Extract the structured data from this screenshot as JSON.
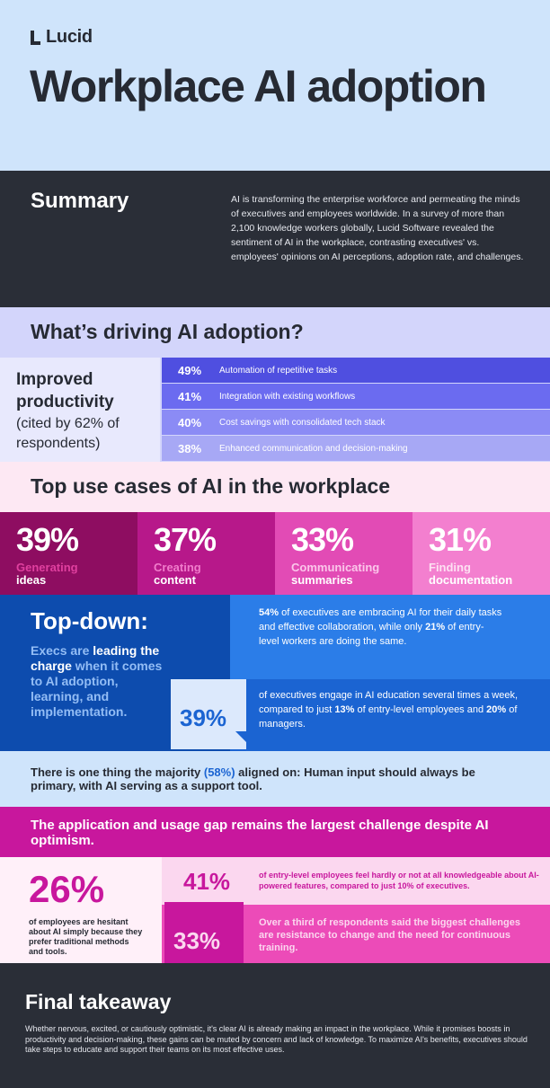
{
  "header": {
    "logo_text": "Lucid",
    "title": "Workplace AI adoption"
  },
  "summary": {
    "heading": "Summary",
    "body": "AI is transforming the enterprise workforce and permeating the minds of executives and employees worldwide. In a survey of more than 2,100 knowledge workers globally, Lucid Software revealed the sentiment of AI in the workplace, contrasting executives' vs. employees' opinions on AI perceptions, adoption rate, and challenges."
  },
  "drivers": {
    "heading": "What’s driving AI adoption?",
    "main_label": "Improved productivity",
    "main_note": "(cited by 62% of respondents)",
    "items": [
      {
        "pct": "49%",
        "label": "Automation of repetitive tasks",
        "color": "#4f4fe0"
      },
      {
        "pct": "41%",
        "label": "Integration with existing workflows",
        "color": "#6b6bf0"
      },
      {
        "pct": "40%",
        "label": "Cost savings with consolidated tech stack",
        "color": "#8b8bf5"
      },
      {
        "pct": "38%",
        "label": "Enhanced communication and decision-making",
        "color": "#a7a8f5"
      }
    ]
  },
  "use_cases": {
    "heading": "Top use cases of AI in the workplace",
    "items": [
      {
        "pct": "39%",
        "line1": "Generating",
        "line2": "ideas",
        "bg": "#8e0d61",
        "accent": "#e0409f"
      },
      {
        "pct": "37%",
        "line1": "Creating",
        "line2": "content",
        "bg": "#b7188a",
        "accent": "#f07ccb"
      },
      {
        "pct": "33%",
        "line1": "Communicating",
        "line2": "summaries",
        "bg": "#e24bb5",
        "accent": "#fbc6ea"
      },
      {
        "pct": "31%",
        "line1": "Finding",
        "line2": "documentation",
        "bg": "#f37fcf",
        "accent": "#fde0f2"
      }
    ]
  },
  "top_down": {
    "heading": "Top-down:",
    "sub_a": "Execs are ",
    "sub_b": "leading the charge",
    "sub_c": " when it comes to AI adoption, learning, and implementation.",
    "stat1_a": "54%",
    "stat1_b": " of executives are embracing AI for their daily tasks and effective collaboration, while only ",
    "stat1_c": "21%",
    "stat1_d": " of entry-level workers are doing the same.",
    "card_pct": "39%",
    "stat2_a": "of executives engage in AI education several times a week, compared to just ",
    "stat2_b": "13%",
    "stat2_c": " of entry-level employees and ",
    "stat2_d": "20%",
    "stat2_e": " of managers."
  },
  "majority": {
    "a": "There is one thing the majority ",
    "pct": "(58%)",
    "b": " aligned on: Human input should always be primary, with AI serving as a support tool."
  },
  "gap": {
    "heading": "The application and usage gap remains the largest challenge despite AI optimism."
  },
  "challenges": {
    "left_pct": "26%",
    "left_text": "of employees are hesitant about AI simply because they prefer traditional methods and tools.",
    "r1_pct": "41%",
    "r1_text": "of entry-level employees feel hardly or not at all knowledgeable about AI-powered features, compared to just 10% of executives.",
    "card_pct": "33%",
    "r2_text": "Over a third of respondents said the biggest challenges are resistance to change and the need for continuous training."
  },
  "final": {
    "heading": "Final takeaway",
    "body": "Whether nervous, excited, or cautiously optimistic, it's clear AI is already making an impact in the workplace. While it promises boosts in productivity and decision-making, these gains can be muted by concern and lack of knowledge. To maximize AI's benefits, executives should take steps to educate and support their teams on its most effective uses."
  }
}
